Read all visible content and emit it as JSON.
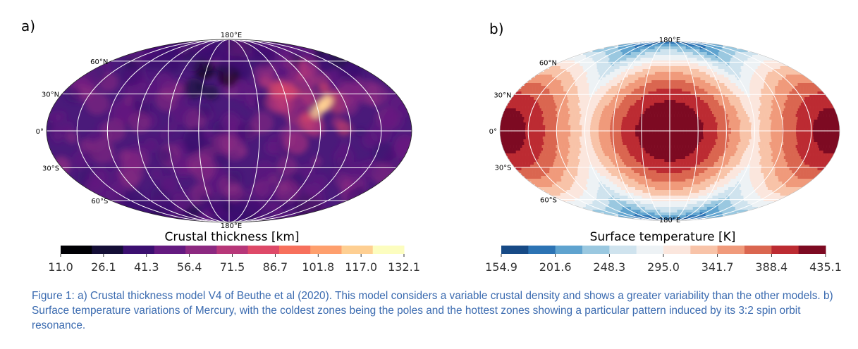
{
  "caption": "Figure 1: a) Crustal thickness model V4 of Beuthe et al (2020). This model considers a variable crustal density and shows a greater variability than the other models. b)  Surface temperature variations of Mercury, with the coldest zones being the poles and the hottest zones showing a particular pattern induced by its 3:2 spin orbit resonance.",
  "chart_data": [
    {
      "type": "heatmap",
      "panel_label": "a)",
      "projection": "mollweide",
      "grid": true,
      "top_label": "180°E",
      "bottom_label": "180°E",
      "latitude_labels": [
        "60°N",
        "30°N",
        "0°",
        "30°S",
        "60°S"
      ],
      "colorbar": {
        "label": "Crustal thickness [km]",
        "ticks": [
          "11.0",
          "26.1",
          "41.3",
          "56.4",
          "71.5",
          "86.7",
          "101.8",
          "117.0",
          "132.1"
        ],
        "colors": [
          "#000004",
          "#140e36",
          "#3b0f70",
          "#641a80",
          "#8c2981",
          "#b73779",
          "#de4968",
          "#f7705c",
          "#fe9f6d",
          "#fecf92",
          "#fcfdbf"
        ]
      }
    },
    {
      "type": "heatmap",
      "panel_label": "b)",
      "projection": "mollweide",
      "grid": true,
      "top_label": "180°E",
      "bottom_label": "180°E",
      "latitude_labels": [
        "60°N",
        "30°N",
        "0°",
        "30°S",
        "60°S"
      ],
      "colorbar": {
        "label": "Surface temperature [K]",
        "ticks": [
          "154.9",
          "201.6",
          "248.3",
          "295.0",
          "341.7",
          "388.4",
          "435.1"
        ],
        "colors": [
          "#174a86",
          "#2c73b4",
          "#5fa3cf",
          "#9ac8e0",
          "#cfe3ee",
          "#edf2f5",
          "#fbe6dd",
          "#f8c3a8",
          "#f09a7b",
          "#da6650",
          "#bc2b32",
          "#7d0a22"
        ]
      }
    }
  ]
}
